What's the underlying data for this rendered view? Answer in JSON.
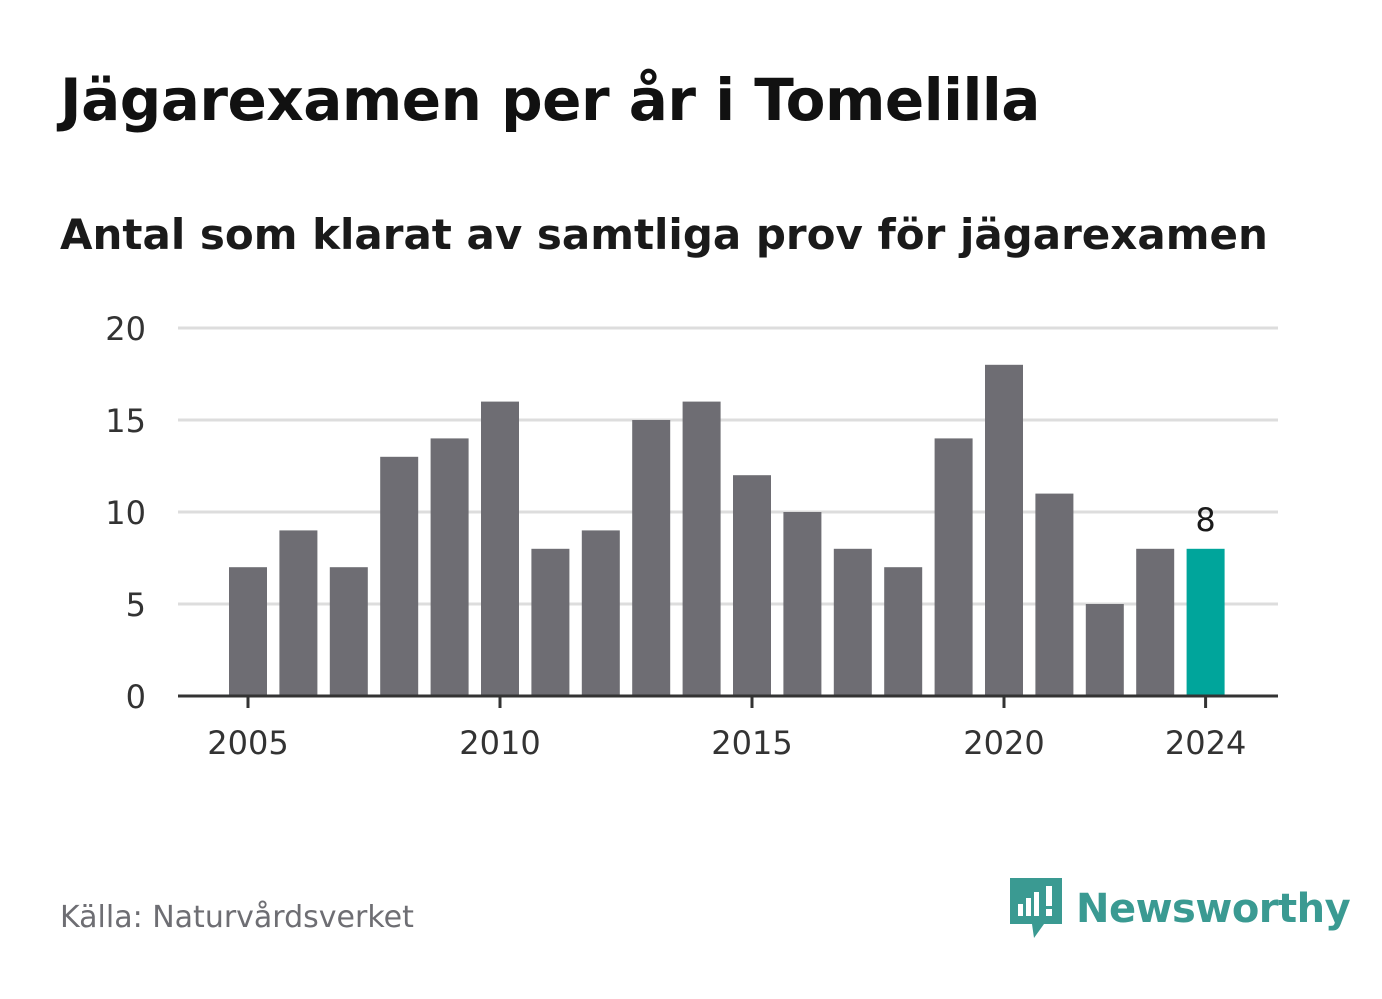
{
  "title": "Jägarexamen per år i Tomelilla",
  "subtitle": "Antal som klarat av samtliga prov för jägarexamen",
  "source": "Källa: Naturvårdsverket",
  "brand": {
    "name": "Newsworthy",
    "icon": "newsworthy-logo-icon",
    "color": "#3a9a92"
  },
  "colors": {
    "bar": "#6e6d73",
    "highlight": "#00a59b",
    "grid": "#dddddd",
    "axis": "#333333"
  },
  "chart_data": {
    "type": "bar",
    "x": [
      2005,
      2006,
      2007,
      2008,
      2009,
      2010,
      2011,
      2012,
      2013,
      2014,
      2015,
      2016,
      2017,
      2018,
      2019,
      2020,
      2021,
      2022,
      2023,
      2024
    ],
    "values": [
      7,
      9,
      7,
      13,
      14,
      16,
      8,
      9,
      15,
      16,
      12,
      10,
      8,
      7,
      14,
      18,
      11,
      5,
      8,
      8
    ],
    "highlight_index": 19,
    "value_label": "8",
    "xticks": [
      "2005",
      "2010",
      "2015",
      "2020",
      "2024"
    ],
    "yticks": [
      "0",
      "5",
      "10",
      "15",
      "20"
    ],
    "ylim": [
      0,
      20
    ],
    "grid": true,
    "xlabel": "",
    "ylabel": ""
  }
}
